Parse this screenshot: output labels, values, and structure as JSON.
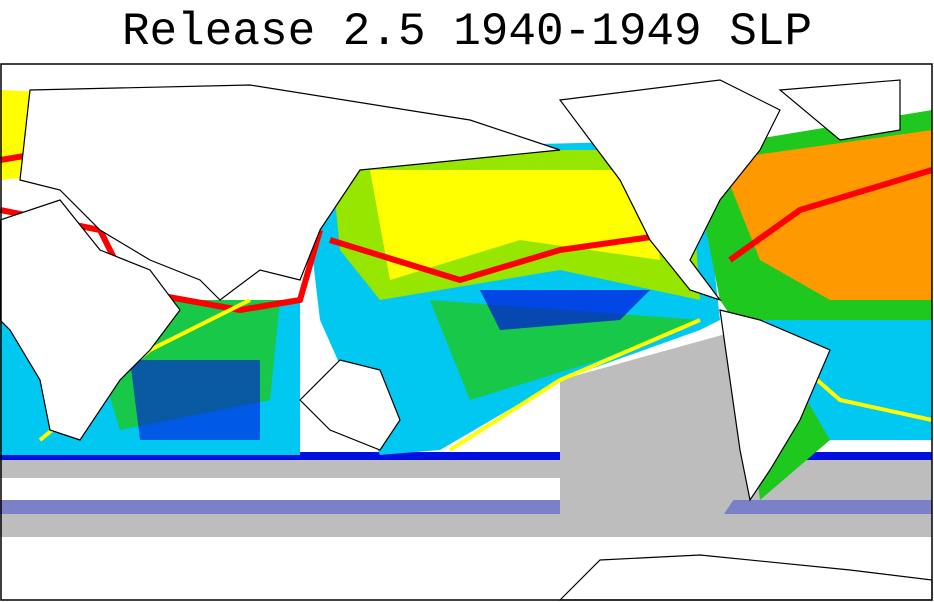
{
  "title": "Release 2.5 1940-1949 SLP"
}
